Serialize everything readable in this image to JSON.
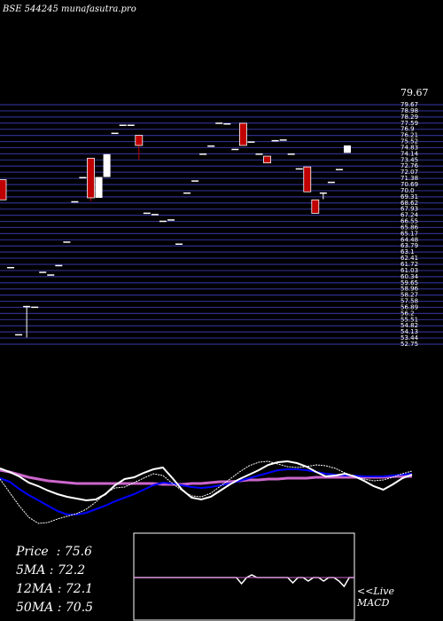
{
  "header": {
    "title": "BSE 544245 munafasutra.pro"
  },
  "stats": {
    "price_label": "Price",
    "price": "75.6",
    "ma5_label": "5MA",
    "ma5": "72.2",
    "ma12_label": "12MA",
    "ma12": "72.1",
    "ma50_label": "50MA",
    "ma50": "70.5"
  },
  "macd": {
    "link": "<<Live",
    "label": "MACD"
  },
  "colors": {
    "background": "#000000",
    "grid": "#2e2e8a",
    "up": "#ffffff",
    "down": "#c00000",
    "ma_fast": "#ffffff",
    "ma_slow": "#0000ff",
    "ma_long": "#cc66cc"
  },
  "chart_data": {
    "type": "candlestick",
    "ylim": [
      44.0,
      79.67
    ],
    "right_labels": [
      "79.67",
      "78.98",
      "78.29",
      "77.59",
      "76.9",
      "76.21",
      "75.52",
      "74.83",
      "74.14",
      "73.45",
      "72.76",
      "72.07",
      "71.38",
      "70.69",
      "70.0",
      "69.31",
      "68.62",
      "67.93",
      "67.24",
      "66.55",
      "65.86",
      "65.17",
      "64.48",
      "63.79",
      "63.1",
      "62.41",
      "61.72",
      "61.03",
      "60.34",
      "59.65",
      "58.96",
      "58.27",
      "57.58",
      "56.89",
      "56.2",
      "55.51",
      "54.82",
      "54.13",
      "53.44",
      "52.75"
    ],
    "candles": [
      {
        "o": 68.5,
        "h": 68.5,
        "l": 65.5,
        "c": 65.5
      },
      {
        "o": 55.5,
        "h": 55.5,
        "l": 55.5,
        "c": 55.5
      },
      {
        "o": 45.5,
        "h": 45.5,
        "l": 45.5,
        "c": 45.5
      },
      {
        "o": 49.7,
        "h": 49.7,
        "l": 45.0,
        "c": 49.7
      },
      {
        "o": 49.6,
        "h": 49.6,
        "l": 49.6,
        "c": 49.6
      },
      {
        "o": 54.8,
        "h": 54.8,
        "l": 54.8,
        "c": 54.8
      },
      {
        "o": 54.4,
        "h": 54.4,
        "l": 54.4,
        "c": 54.4
      },
      {
        "o": 55.8,
        "h": 55.8,
        "l": 55.8,
        "c": 55.8
      },
      {
        "o": 59.3,
        "h": 59.3,
        "l": 59.3,
        "c": 59.3
      },
      {
        "o": 65.3,
        "h": 65.3,
        "l": 65.3,
        "c": 65.3
      },
      {
        "o": 68.9,
        "h": 68.9,
        "l": 68.9,
        "c": 68.9
      },
      {
        "o": 71.7,
        "h": 71.7,
        "l": 65.3,
        "c": 65.8
      },
      {
        "o": 65.8,
        "h": 68.9,
        "l": 65.8,
        "c": 68.9
      },
      {
        "o": 68.9,
        "h": 72.3,
        "l": 68.9,
        "c": 72.3
      },
      {
        "o": 75.5,
        "h": 75.5,
        "l": 75.5,
        "c": 75.5
      },
      {
        "o": 76.7,
        "h": 76.7,
        "l": 76.7,
        "c": 76.7
      },
      {
        "o": 76.7,
        "h": 76.7,
        "l": 76.7,
        "c": 76.7
      },
      {
        "o": 75.1,
        "h": 75.1,
        "l": 71.5,
        "c": 73.6
      },
      {
        "o": 63.6,
        "h": 63.6,
        "l": 63.6,
        "c": 63.6
      },
      {
        "o": 63.4,
        "h": 63.4,
        "l": 63.4,
        "c": 63.4
      },
      {
        "o": 62.4,
        "h": 62.4,
        "l": 62.4,
        "c": 62.4
      },
      {
        "o": 62.6,
        "h": 62.6,
        "l": 62.6,
        "c": 62.6
      },
      {
        "o": 59.0,
        "h": 59.0,
        "l": 59.0,
        "c": 59.0
      },
      {
        "o": 66.6,
        "h": 66.6,
        "l": 66.6,
        "c": 66.6
      },
      {
        "o": 68.4,
        "h": 68.4,
        "l": 68.4,
        "c": 68.4
      },
      {
        "o": 72.4,
        "h": 72.4,
        "l": 72.4,
        "c": 72.4
      },
      {
        "o": 73.6,
        "h": 73.6,
        "l": 73.6,
        "c": 73.6
      },
      {
        "o": 77.0,
        "h": 77.0,
        "l": 77.0,
        "c": 77.0
      },
      {
        "o": 76.9,
        "h": 76.9,
        "l": 76.9,
        "c": 76.9
      },
      {
        "o": 73.1,
        "h": 73.1,
        "l": 73.1,
        "c": 73.1
      },
      {
        "o": 76.9,
        "h": 77.0,
        "l": 73.6,
        "c": 73.6
      },
      {
        "o": 74.2,
        "h": 74.2,
        "l": 74.2,
        "c": 74.2
      },
      {
        "o": 72.4,
        "h": 72.4,
        "l": 72.4,
        "c": 72.4
      },
      {
        "o": 72.0,
        "h": 72.0,
        "l": 71.0,
        "c": 71.0
      },
      {
        "o": 74.2,
        "h": 74.4,
        "l": 74.2,
        "c": 74.4
      },
      {
        "o": 74.5,
        "h": 74.5,
        "l": 74.5,
        "c": 74.5
      },
      {
        "o": 72.4,
        "h": 72.4,
        "l": 72.4,
        "c": 72.4
      },
      {
        "o": 70.2,
        "h": 70.2,
        "l": 70.2,
        "c": 70.2
      },
      {
        "o": 70.4,
        "h": 70.4,
        "l": 66.7,
        "c": 66.7
      },
      {
        "o": 65.5,
        "h": 65.5,
        "l": 63.5,
        "c": 63.5
      },
      {
        "o": 66.6,
        "h": 66.6,
        "l": 65.6,
        "c": 66.6
      },
      {
        "o": 68.2,
        "h": 68.2,
        "l": 68.2,
        "c": 68.2
      },
      {
        "o": 70.1,
        "h": 70.1,
        "l": 70.1,
        "c": 70.1
      },
      {
        "o": 72.5,
        "h": 73.6,
        "l": 72.5,
        "c": 73.6
      }
    ],
    "indicators": {
      "price_line": [
        528,
        532,
        537,
        544,
        548,
        553,
        557,
        560,
        562,
        564,
        563,
        557,
        547,
        540,
        538,
        533,
        529,
        527,
        539,
        552,
        561,
        563,
        560,
        553,
        546,
        540,
        535,
        530,
        524,
        521,
        520,
        522,
        526,
        532,
        537,
        536,
        534,
        537,
        542,
        548,
        552,
        546,
        539,
        535
      ],
      "fast_ma": [
        540,
        555,
        570,
        583,
        590,
        589,
        585,
        582,
        579,
        574,
        566,
        556,
        550,
        549,
        544,
        539,
        534,
        536,
        545,
        553,
        559,
        560,
        556,
        548,
        540,
        532,
        525,
        521,
        520,
        523,
        526,
        527,
        526,
        524,
        525,
        528,
        533,
        537,
        540,
        542,
        541,
        538,
        534,
        531
      ],
      "slow_ma": [
        539,
        543,
        551,
        558,
        564,
        570,
        576,
        580,
        580,
        578,
        574,
        570,
        565,
        561,
        557,
        552,
        547,
        544,
        545,
        547,
        549,
        550,
        549,
        547,
        545,
        542,
        539,
        536,
        533,
        530,
        529,
        529,
        530,
        532,
        534,
        535,
        536,
        536,
        537,
        537,
        537,
        536,
        535,
        534
      ],
      "long_ma": [
        530,
        532,
        535,
        538,
        540,
        542,
        543,
        544,
        545,
        545,
        545,
        545,
        545,
        545,
        545,
        545,
        545,
        546,
        546,
        546,
        545,
        545,
        544,
        543,
        543,
        542,
        541,
        541,
        540,
        540,
        539,
        539,
        539,
        538,
        538,
        538,
        538,
        538,
        538,
        538,
        538,
        537,
        537,
        537
      ],
      "macd_line": [
        651,
        651,
        651,
        651,
        651,
        651,
        651,
        651,
        651,
        651,
        651,
        651,
        651,
        651,
        651,
        651,
        651,
        651,
        651,
        651,
        651,
        658,
        651,
        648,
        651,
        651,
        651,
        651,
        651,
        651,
        651,
        657,
        651,
        651,
        655,
        651,
        651,
        655,
        651,
        651,
        655,
        661,
        651,
        651
      ]
    }
  }
}
